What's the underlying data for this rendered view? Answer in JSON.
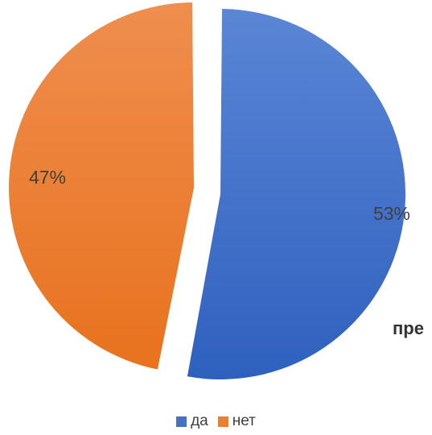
{
  "chart_data": {
    "type": "pie",
    "exploded": true,
    "slices": [
      {
        "label": "да",
        "value": 53,
        "value_label": "53%",
        "color": "#4472C4"
      },
      {
        "label": "нет",
        "value": 47,
        "value_label": "47%",
        "color": "#ED7D31"
      }
    ],
    "legend_position": "bottom"
  },
  "partial_text": "пре"
}
